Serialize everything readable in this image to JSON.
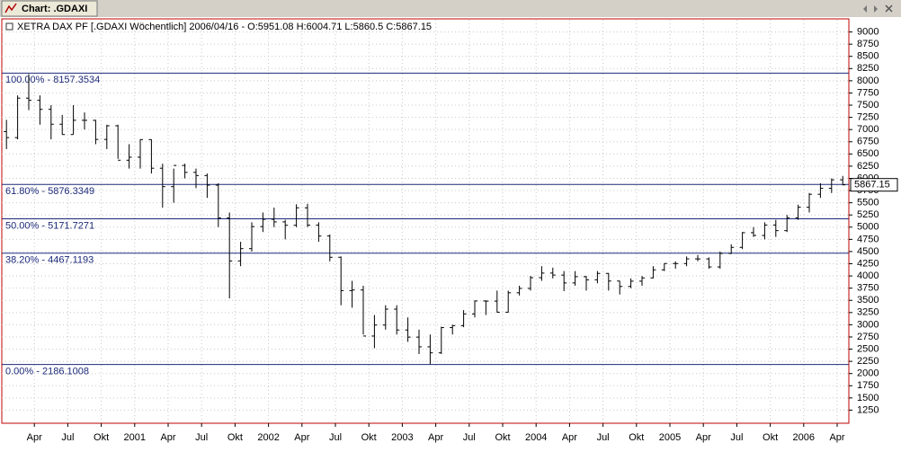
{
  "window": {
    "title": "Chart: .GDAXI"
  },
  "chart_data": {
    "type": "ohlc",
    "header": "XETRA DAX PF [.GDAXI  Wöchentlich] 2006/04/16 - O:5951.08 H:6004.71 L:5860.5 C:5867.15",
    "categories": [
      null,
      null,
      null,
      "Apr",
      null,
      null,
      "Jul",
      null,
      null,
      "Okt",
      null,
      null,
      "2001",
      null,
      null,
      "Apr",
      null,
      null,
      "Jul",
      null,
      null,
      "Okt",
      null,
      null,
      "2002",
      null,
      null,
      "Apr",
      null,
      null,
      "Jul",
      null,
      null,
      "Okt",
      null,
      null,
      "2003",
      null,
      null,
      "Apr",
      null,
      null,
      "Jul",
      null,
      null,
      "Okt",
      null,
      null,
      "2004",
      null,
      null,
      "Apr",
      null,
      null,
      "Jul",
      null,
      null,
      "Okt",
      null,
      null,
      "2005",
      null,
      null,
      "Apr",
      null,
      null,
      "Jul",
      null,
      null,
      "Okt",
      null,
      null,
      "2006",
      null,
      null,
      "Apr"
    ],
    "open": [
      6958,
      6835,
      7644,
      7599,
      7414,
      7109,
      6898,
      7190,
      7189,
      6798,
      7077,
      6372,
      6434,
      6795,
      6208,
      5830,
      6265,
      6123,
      6058,
      5861,
      5188,
      4308,
      4560,
      5012,
      5160,
      5108,
      5039,
      5397,
      5041,
      4818,
      4383,
      3700,
      3712,
      2769,
      2994,
      3320,
      2893,
      2747,
      2548,
      2424,
      2942,
      2982,
      3221,
      3487,
      3484,
      3257,
      3655,
      3745,
      3965,
      4059,
      4018,
      3857,
      3985,
      3921,
      4052,
      3896,
      3785,
      3893,
      3960,
      4126,
      4256,
      4254,
      4350,
      4349,
      4185,
      4461,
      4586,
      4887,
      4830,
      5044,
      4929,
      5193,
      5408,
      5674,
      5796,
      5970
    ],
    "high": [
      7200,
      7700,
      8136,
      7700,
      7500,
      7300,
      7500,
      7350,
      7200,
      7100,
      7100,
      6700,
      6800,
      6800,
      6300,
      6200,
      6300,
      6200,
      6100,
      5900,
      5300,
      4700,
      5100,
      5300,
      5400,
      5150,
      5470,
      5480,
      5100,
      4850,
      4400,
      3900,
      3800,
      3200,
      3400,
      3400,
      3150,
      2900,
      2800,
      2960,
      3000,
      3300,
      3500,
      3500,
      3700,
      3700,
      3800,
      4000,
      4200,
      4170,
      4100,
      4100,
      4000,
      4100,
      4060,
      3900,
      3950,
      4000,
      4200,
      4260,
      4300,
      4400,
      4430,
      4380,
      4500,
      4650,
      4900,
      5000,
      5100,
      5150,
      5250,
      5460,
      5700,
      5900,
      6000,
      6050
    ],
    "low": [
      6600,
      6800,
      7400,
      7100,
      6800,
      6900,
      6900,
      7000,
      6700,
      6600,
      6400,
      6200,
      6200,
      6100,
      5400,
      5500,
      6000,
      5800,
      5600,
      5000,
      3540,
      4200,
      4500,
      4900,
      5000,
      4750,
      5000,
      5000,
      4700,
      4300,
      3400,
      3350,
      2800,
      2520,
      2900,
      2800,
      2650,
      2400,
      2190,
      2400,
      2800,
      2950,
      3150,
      3200,
      3250,
      3250,
      3600,
      3700,
      3900,
      3950,
      3690,
      3800,
      3700,
      3850,
      3700,
      3620,
      3750,
      3800,
      3950,
      4100,
      4150,
      4200,
      4300,
      4150,
      4150,
      4450,
      4550,
      4800,
      4750,
      4800,
      4900,
      5150,
      5300,
      5600,
      5700,
      5860
    ],
    "close": [
      6835,
      7644,
      7599,
      7414,
      7109,
      6898,
      7190,
      7189,
      6798,
      7077,
      6372,
      6434,
      6795,
      6208,
      5830,
      6265,
      6123,
      6058,
      5861,
      5188,
      4308,
      4560,
      5012,
      5160,
      5108,
      5039,
      5397,
      5041,
      4818,
      4383,
      3700,
      3712,
      2769,
      2994,
      3320,
      2893,
      2747,
      2548,
      2424,
      2942,
      2982,
      3221,
      3487,
      3484,
      3257,
      3655,
      3745,
      3965,
      4059,
      4018,
      3857,
      3985,
      3921,
      4052,
      3896,
      3785,
      3893,
      3960,
      4126,
      4256,
      4254,
      4350,
      4349,
      4185,
      4461,
      4586,
      4887,
      4830,
      5044,
      4929,
      5193,
      5408,
      5674,
      5796,
      5970,
      5867
    ],
    "color": "#000000",
    "ylim": [
      1000,
      9250
    ],
    "yticks": [
      1250,
      1500,
      1750,
      2000,
      2250,
      2500,
      2750,
      3000,
      3250,
      3500,
      3750,
      4000,
      4250,
      4500,
      4750,
      5000,
      5250,
      5500,
      5750,
      6000,
      6250,
      6500,
      6750,
      7000,
      7250,
      7500,
      7750,
      8000,
      8250,
      8500,
      8750,
      9000
    ],
    "grid": true,
    "levels": [
      {
        "value": 8157.3534,
        "label": "100.00% - 8157.3534"
      },
      {
        "value": 5876.3349,
        "label": "61.80% - 5876.3349"
      },
      {
        "value": 5171.7271,
        "label": "50.00% - 5171.7271"
      },
      {
        "value": 4467.1193,
        "label": "38.20% - 4467.1193"
      },
      {
        "value": 2186.1008,
        "label": "0.00% - 2186.1008"
      }
    ],
    "level_color": "#1c2a7a",
    "last_price": 5867.15
  }
}
